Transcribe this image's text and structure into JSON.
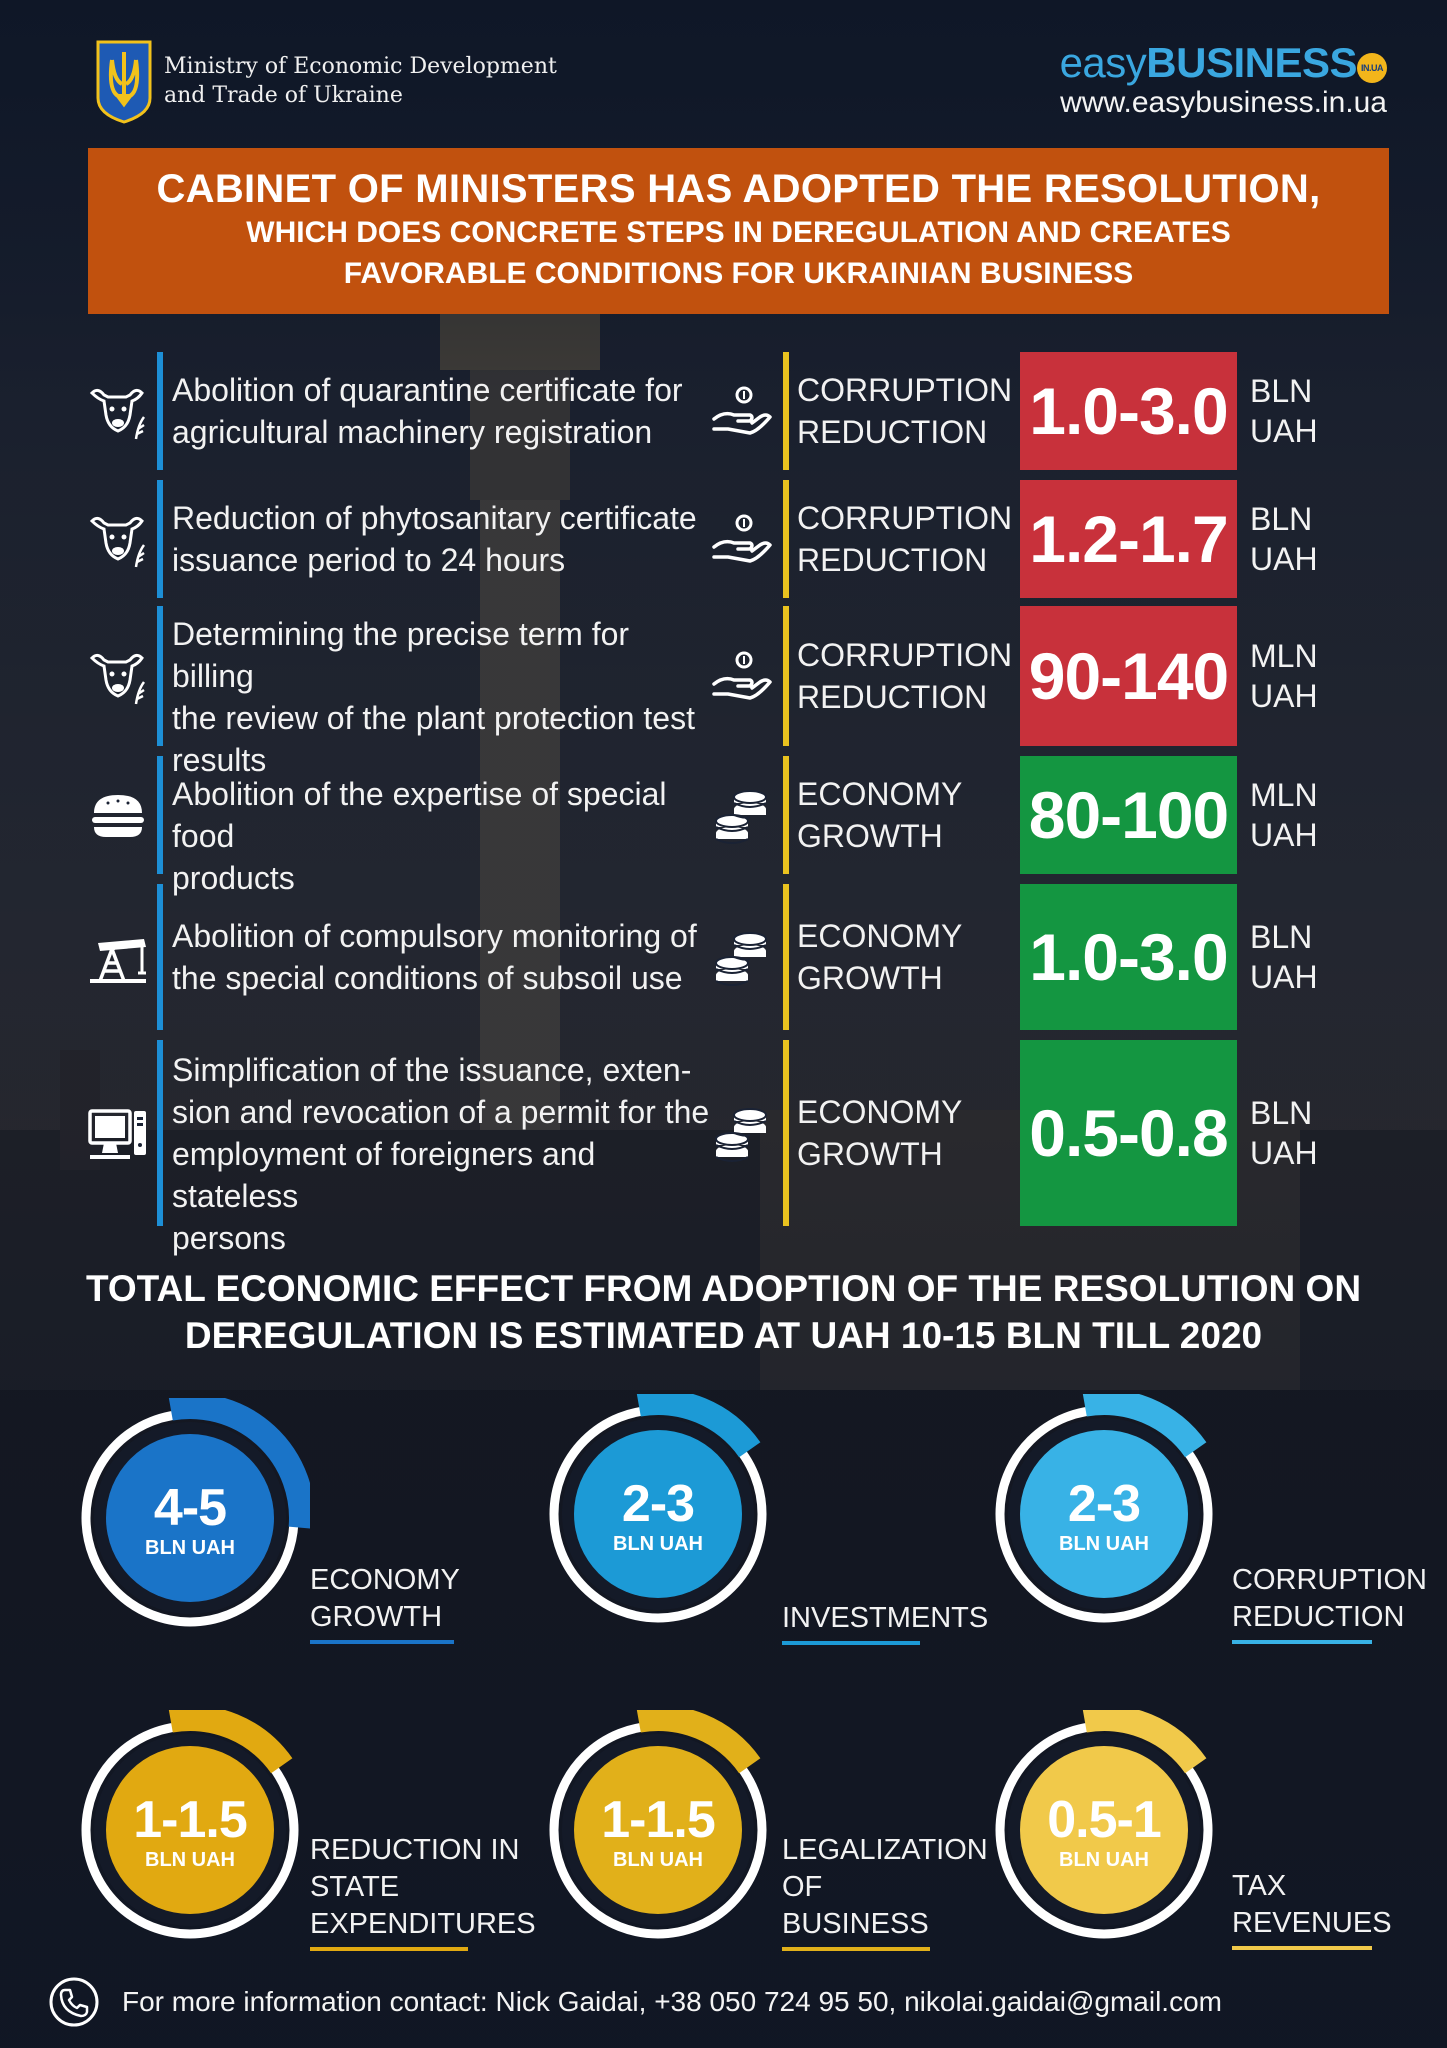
{
  "header": {
    "ministry_line1": "Ministry of Economic Development",
    "ministry_line2": "and Trade of Ukraine",
    "brand_easy": "easy",
    "brand_business": "BUSINESS",
    "brand_badge": "IN.UA",
    "brand_url": "www.easybusiness.in.ua"
  },
  "banner": {
    "line1": "CABINET OF MINISTERS HAS ADOPTED THE RESOLUTION,",
    "line2": "WHICH DOES CONCRETE STEPS IN DEREGULATION AND CREATES",
    "line3": "FAVORABLE CONDITIONS FOR UKRAINIAN BUSINESS"
  },
  "rows": [
    {
      "text": [
        "Abolition of quarantine certificate for",
        "agricultural machinery registration"
      ],
      "icon": "cow-wheat-icon",
      "category": [
        "CORRUPTION",
        "REDUCTION"
      ],
      "cat_icon": "hand-coin-icon",
      "value": "1.0-3.0",
      "unit": [
        "BLN",
        "UAH"
      ],
      "color": "#c8313b"
    },
    {
      "text": [
        "Reduction of phytosanitary certificate",
        "issuance period to 24 hours"
      ],
      "icon": "cow-wheat-icon",
      "category": [
        "CORRUPTION",
        "REDUCTION"
      ],
      "cat_icon": "hand-coin-icon",
      "value": "1.2-1.7",
      "unit": [
        "BLN",
        "UAH"
      ],
      "color": "#c8313b"
    },
    {
      "text": [
        "Determining the precise term for billing",
        "the review of the plant protection test",
        "results"
      ],
      "icon": "cow-wheat-icon",
      "category": [
        "CORRUPTION",
        "REDUCTION"
      ],
      "cat_icon": "hand-coin-icon",
      "value": "90-140",
      "unit": [
        "MLN",
        "UAH"
      ],
      "color": "#c8313b"
    },
    {
      "text": [
        "Abolition of the expertise of special food",
        "products"
      ],
      "icon": "burger-icon",
      "category": [
        "ECONOMY",
        "GROWTH"
      ],
      "cat_icon": "coin-stack-icon",
      "value": "80-100",
      "unit": [
        "MLN",
        "UAH"
      ],
      "color": "#149641"
    },
    {
      "text": [
        "Abolition of compulsory monitoring of",
        "the special conditions of subsoil use"
      ],
      "icon": "oil-pump-icon",
      "category": [
        "ECONOMY",
        "GROWTH"
      ],
      "cat_icon": "coin-stack-icon",
      "value": "1.0-3.0",
      "unit": [
        "BLN",
        "UAH"
      ],
      "color": "#149641"
    },
    {
      "text": [
        "Simplification of the issuance, exten-",
        "sion and revocation of a permit for the",
        "employment of foreigners and stateless",
        "persons"
      ],
      "icon": "computer-icon",
      "category": [
        "ECONOMY",
        "GROWTH"
      ],
      "cat_icon": "coin-stack-icon",
      "value": "0.5-0.8",
      "unit": [
        "BLN",
        "UAH"
      ],
      "color": "#149641"
    }
  ],
  "total": {
    "line1": "TOTAL ECONOMIC EFFECT FROM ADOPTION OF THE RESOLUTION ON",
    "line2": "DEREGULATION IS ESTIMATED AT UAH 10-15 BLN TILL 2020"
  },
  "effects": [
    {
      "value": "4-5",
      "unit": "BLN UAH",
      "label": [
        "ECONOMY",
        "GROWTH"
      ],
      "color": "#1a74c8"
    },
    {
      "value": "2-3",
      "unit": "BLN UAH",
      "label": [
        "INVESTMENTS"
      ],
      "color": "#1c9ad6"
    },
    {
      "value": "2-3",
      "unit": "BLN UAH",
      "label": [
        "CORRUPTION",
        "REDUCTION"
      ],
      "color": "#38b2e6"
    },
    {
      "value": "1-1.5",
      "unit": "BLN UAH",
      "label": [
        "REDUCTION IN",
        "STATE",
        "EXPENDITURES"
      ],
      "color": "#e1a911"
    },
    {
      "value": "1-1.5",
      "unit": "BLN UAH",
      "label": [
        "LEGALIZATION",
        "OF",
        "BUSINESS"
      ],
      "color": "#e1b01a"
    },
    {
      "value": "0.5-1",
      "unit": "BLN UAH",
      "label": [
        "TAX",
        "REVENUES"
      ],
      "color": "#f1c94a"
    }
  ],
  "footer": {
    "text": "For more information contact: Nick Gaidai, +38 050 724 95 50, nikolai.gaidai@gmail.com",
    "icon": "phone-icon"
  }
}
